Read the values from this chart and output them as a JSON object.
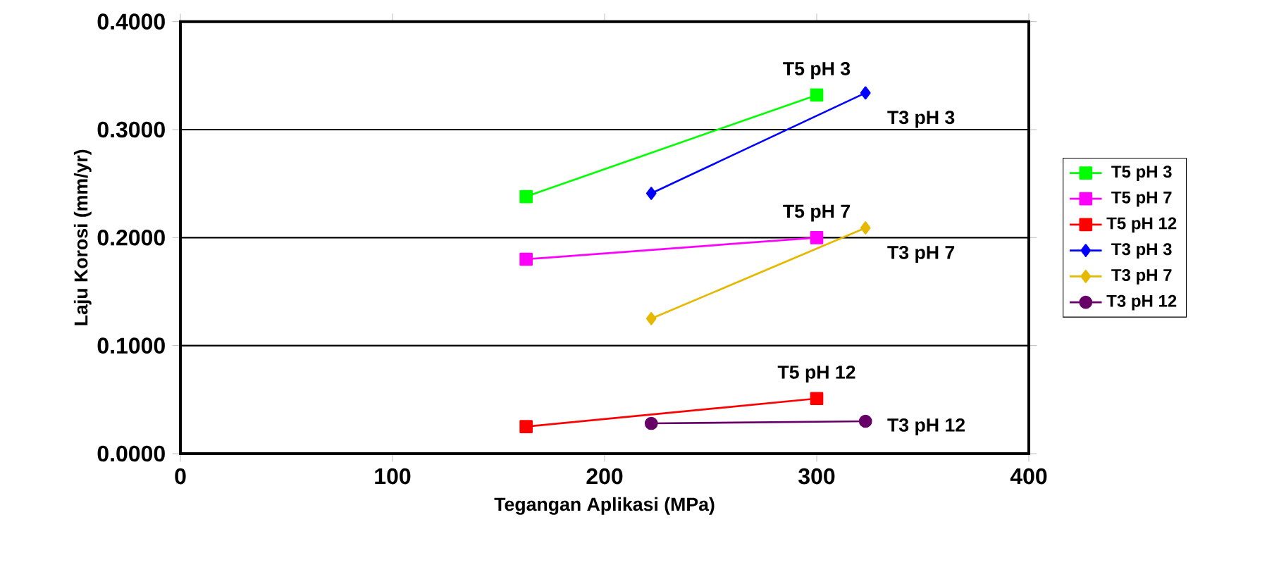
{
  "chart_data": {
    "type": "line",
    "xlabel": "Tegangan Aplikasi (MPa)",
    "ylabel": "Laju Korosi (mm/yr)",
    "xlim": [
      0,
      400
    ],
    "xticks": [
      0,
      100,
      200,
      300,
      400
    ],
    "ylim": [
      0,
      0.4
    ],
    "yticks": [
      {
        "value": 0,
        "label": "0.0000"
      },
      {
        "value": 0.1,
        "label": "0.1000"
      },
      {
        "value": 0.2,
        "label": "0.2000"
      },
      {
        "value": 0.3,
        "label": "0.3000"
      },
      {
        "value": 0.4,
        "label": "0.4000"
      }
    ],
    "grid": "y",
    "legend": "right",
    "series": [
      {
        "name": "T5 pH 3",
        "color": "#00ff00",
        "marker": "square",
        "x": [
          163,
          300
        ],
        "values": [
          0.238,
          0.332
        ]
      },
      {
        "name": "T5 pH 7",
        "color": "#ff00ff",
        "marker": "square",
        "x": [
          163,
          300
        ],
        "values": [
          0.18,
          0.2
        ]
      },
      {
        "name": "T5 pH 12",
        "color": "#ff0000",
        "marker": "square",
        "x": [
          163,
          300
        ],
        "values": [
          0.025,
          0.051
        ]
      },
      {
        "name": "T3 pH 3",
        "color": "#0000ff",
        "marker": "diamond",
        "x": [
          222,
          323
        ],
        "values": [
          0.241,
          0.334
        ]
      },
      {
        "name": "T3 pH 7",
        "color": "#e6b800",
        "marker": "diamond",
        "x": [
          222,
          323
        ],
        "values": [
          0.125,
          0.209
        ]
      },
      {
        "name": "T3 pH 12",
        "color": "#660066",
        "marker": "circle",
        "x": [
          222,
          323
        ],
        "values": [
          0.028,
          0.03
        ]
      }
    ]
  }
}
